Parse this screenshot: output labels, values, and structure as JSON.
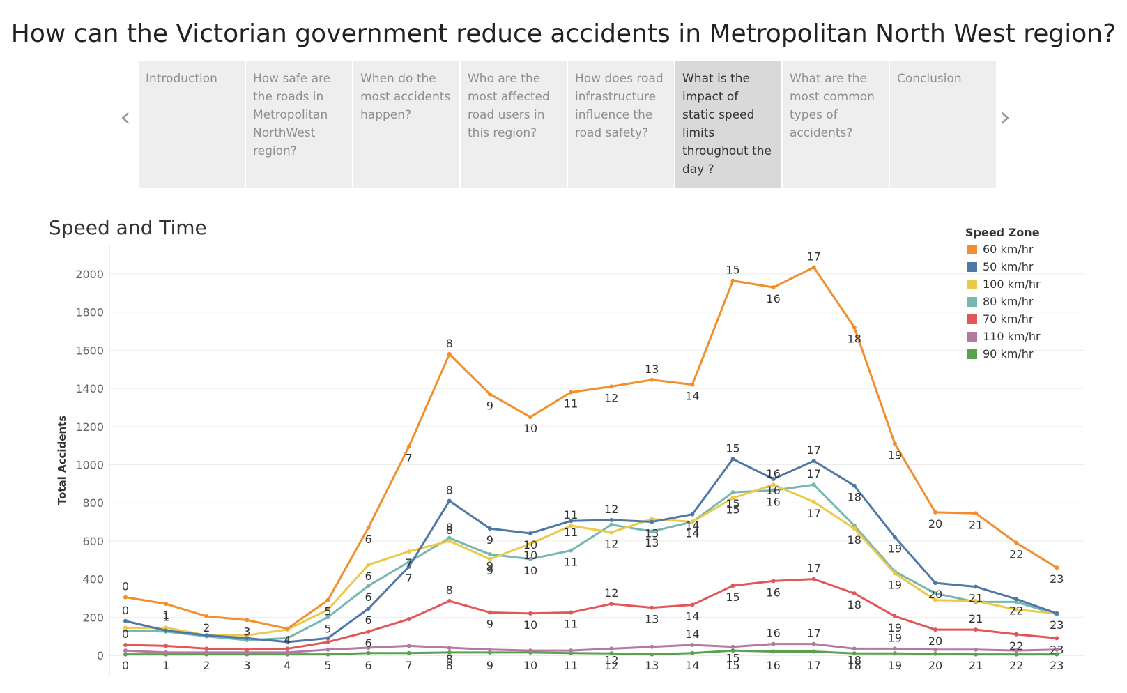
{
  "page_title": "How can the Victorian government reduce accidents in Metropolitan North West region?",
  "story_nav": {
    "prev_icon": "chevron-left-icon",
    "next_icon": "chevron-right-icon",
    "points": [
      {
        "label": "Introduction"
      },
      {
        "label": "How safe are the roads in Metropolitan NorthWest region?"
      },
      {
        "label": "When do the most accidents happen?"
      },
      {
        "label": "Who are the most affected road users in this region?"
      },
      {
        "label": "How does road infrastructure influence the road safety?"
      },
      {
        "label": "What is the impact of static speed limits throughout the day ?",
        "active": true
      },
      {
        "label": "What are the most common types of accidents?"
      },
      {
        "label": "Conclusion"
      }
    ]
  },
  "chart_data": {
    "type": "line",
    "title": "Speed and Time",
    "xlabel": "",
    "ylabel": "Total Accidents",
    "x": [
      0,
      1,
      2,
      3,
      4,
      5,
      6,
      7,
      8,
      9,
      10,
      11,
      12,
      13,
      14,
      15,
      16,
      17,
      18,
      19,
      20,
      21,
      22,
      23
    ],
    "x_ticks": [
      "0",
      "1",
      "2",
      "3",
      "4",
      "5",
      "6",
      "7",
      "8",
      "9",
      "10",
      "11",
      "12",
      "13",
      "14",
      "15",
      "16",
      "17",
      "18",
      "19",
      "20",
      "21",
      "22",
      "23"
    ],
    "y_ticks": [
      0,
      200,
      400,
      600,
      800,
      1000,
      1200,
      1400,
      1600,
      1800,
      2000
    ],
    "ylim": [
      0,
      2150
    ],
    "grid": true,
    "legend": {
      "title": "Speed Zone",
      "position": "top-right"
    },
    "series": [
      {
        "name": "60 km/hr",
        "color": "#f28e2b",
        "values": [
          305,
          270,
          205,
          185,
          140,
          290,
          670,
          1095,
          1580,
          1370,
          1250,
          1380,
          1410,
          1445,
          1420,
          1965,
          1930,
          2035,
          1720,
          1110,
          750,
          745,
          590,
          460
        ],
        "labels": [
          "0",
          "1",
          "2",
          "3",
          "4",
          "5",
          "6",
          "7",
          "8",
          "9",
          "10",
          "11",
          "12",
          "13",
          "14",
          "15",
          "16",
          "17",
          "18",
          "19",
          "20",
          "21",
          "22",
          "23"
        ]
      },
      {
        "name": "50 km/hr",
        "color": "#4e79a7",
        "values": [
          180,
          130,
          105,
          90,
          70,
          90,
          245,
          465,
          810,
          665,
          640,
          705,
          710,
          700,
          740,
          1030,
          925,
          1020,
          890,
          620,
          380,
          360,
          295,
          220
        ],
        "labels": [
          "0",
          "",
          "",
          "",
          "",
          "",
          "6",
          "7",
          "8",
          "9",
          "10",
          "11",
          "12",
          "13",
          "14",
          "15",
          "16",
          "17",
          "18",
          "19",
          "20",
          "21",
          "22",
          "23"
        ]
      },
      {
        "name": "100 km/hr",
        "color": "#edc948",
        "values": [
          145,
          145,
          105,
          105,
          135,
          240,
          475,
          545,
          600,
          505,
          585,
          680,
          645,
          715,
          700,
          825,
          895,
          805,
          665,
          430,
          290,
          285,
          240,
          220
        ],
        "labels": [
          "",
          "1",
          "",
          "",
          "",
          "",
          "6",
          "7",
          "8",
          "9",
          "10",
          "11",
          "12",
          "",
          "14",
          "15",
          "16",
          "17",
          "18",
          "19",
          "",
          "",
          "",
          ""
        ]
      },
      {
        "name": "80 km/hr",
        "color": "#76b7b2",
        "values": [
          130,
          125,
          100,
          80,
          90,
          200,
          365,
          490,
          615,
          530,
          505,
          550,
          685,
          650,
          700,
          855,
          865,
          895,
          680,
          440,
          325,
          280,
          280,
          215
        ],
        "labels": [
          "",
          "",
          "",
          "",
          "",
          "5",
          "6",
          "",
          "8",
          "9",
          "10",
          "11",
          "",
          "13",
          "14",
          "15",
          "16",
          "17",
          "",
          "",
          "",
          "",
          "",
          ""
        ]
      },
      {
        "name": "70 km/hr",
        "color": "#e15759",
        "values": [
          55,
          50,
          35,
          30,
          35,
          70,
          125,
          190,
          285,
          225,
          220,
          225,
          270,
          250,
          265,
          365,
          390,
          400,
          325,
          205,
          135,
          135,
          110,
          90
        ],
        "labels": [
          "0",
          "",
          "",
          "",
          "",
          "",
          "6",
          "",
          "8",
          "9",
          "10",
          "11",
          "12",
          "13",
          "14",
          "15",
          "16",
          "17",
          "18",
          "19",
          "20",
          "21",
          "22",
          "23"
        ]
      },
      {
        "name": "110 km/hr",
        "color": "#b07aa1",
        "values": [
          25,
          15,
          15,
          15,
          15,
          30,
          40,
          50,
          40,
          30,
          25,
          25,
          35,
          45,
          55,
          45,
          60,
          60,
          35,
          35,
          30,
          30,
          25,
          30
        ],
        "labels": [
          "",
          "",
          "",
          "",
          "",
          "",
          "",
          "",
          "8",
          "",
          "",
          "",
          "12",
          "",
          "14",
          "15",
          "16",
          "17",
          "18",
          "19",
          "",
          "",
          "",
          ""
        ]
      },
      {
        "name": "90 km/hr",
        "color": "#59a14f",
        "values": [
          5,
          5,
          5,
          5,
          5,
          5,
          12,
          12,
          15,
          15,
          15,
          12,
          10,
          5,
          12,
          25,
          20,
          20,
          10,
          10,
          8,
          5,
          5,
          5
        ],
        "labels": [
          "",
          "",
          "",
          "",
          "",
          "",
          "",
          "",
          "",
          "",
          "",
          "",
          "",
          "",
          "",
          "",
          "",
          "",
          "",
          "",
          "",
          "",
          "",
          ""
        ]
      }
    ]
  }
}
